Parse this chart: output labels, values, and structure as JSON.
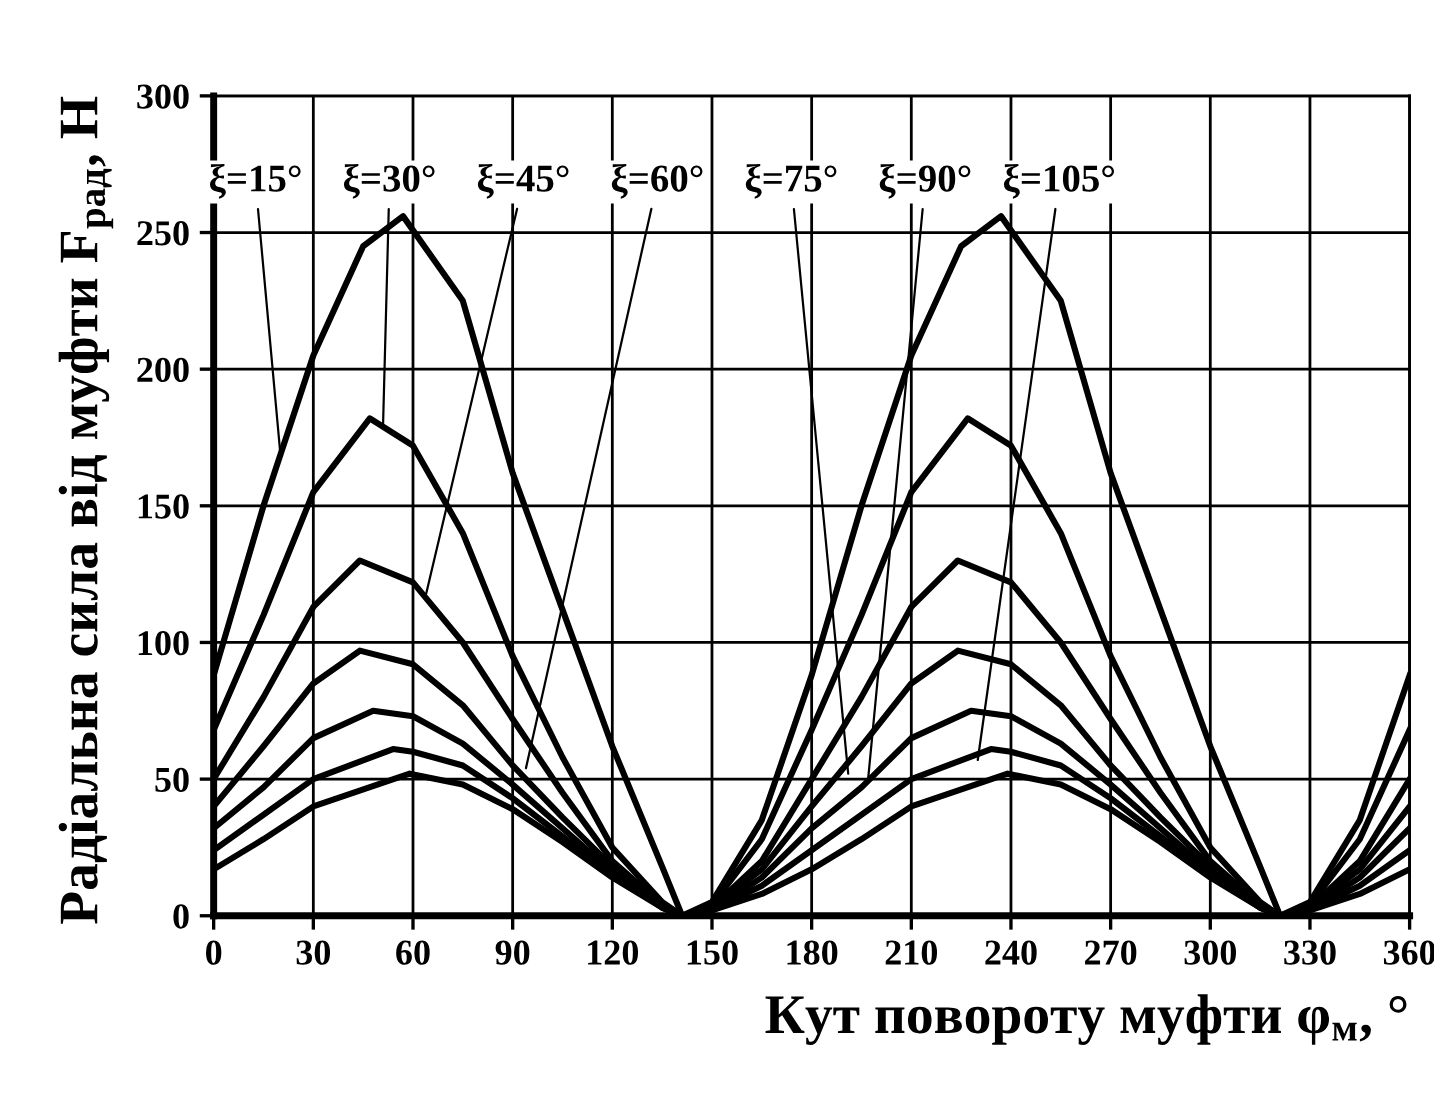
{
  "chart_data": {
    "type": "line",
    "xlabel": "Кут повороту муфти φ$_{м}$, °",
    "ylabel": "Радіальна сила від муфти F$_{рад}$, Н",
    "xlim": [
      0,
      360
    ],
    "ylim": [
      0,
      300
    ],
    "xticks": [
      0,
      30,
      60,
      90,
      120,
      150,
      180,
      210,
      240,
      270,
      300,
      330,
      360
    ],
    "yticks": [
      0,
      50,
      100,
      150,
      200,
      250,
      300
    ],
    "grid": true,
    "marker": "none",
    "line_style": "solid",
    "series": [
      {
        "color": "#000000",
        "x": [
          0,
          15,
          30,
          45,
          57,
          75,
          90,
          105,
          120,
          135,
          141,
          150,
          165,
          180,
          195,
          210,
          225,
          237,
          255,
          270,
          285,
          300,
          315,
          321,
          330,
          345,
          360
        ],
        "values": [
          88,
          150,
          205,
          245,
          256,
          225,
          162,
          112,
          62,
          18,
          0,
          5,
          35,
          88,
          150,
          205,
          245,
          256,
          225,
          162,
          112,
          62,
          18,
          0,
          5,
          35,
          88
        ]
      },
      {
        "color": "#000000",
        "x": [
          0,
          15,
          30,
          47,
          60,
          75,
          90,
          105,
          120,
          135,
          141,
          150,
          165,
          180,
          195,
          210,
          227,
          240,
          255,
          270,
          285,
          300,
          315,
          321,
          330,
          345,
          360
        ],
        "values": [
          68,
          110,
          155,
          182,
          172,
          140,
          95,
          58,
          25,
          5,
          0,
          4,
          28,
          68,
          110,
          155,
          182,
          172,
          140,
          95,
          58,
          25,
          5,
          0,
          4,
          28,
          68
        ]
      },
      {
        "color": "#000000",
        "x": [
          0,
          15,
          30,
          44,
          60,
          75,
          90,
          105,
          120,
          135,
          141,
          150,
          165,
          180,
          195,
          210,
          224,
          240,
          255,
          270,
          285,
          300,
          315,
          321,
          330,
          345,
          360
        ],
        "values": [
          50,
          80,
          113,
          130,
          122,
          100,
          72,
          45,
          20,
          4,
          0,
          3,
          20,
          50,
          80,
          113,
          130,
          122,
          100,
          72,
          45,
          20,
          4,
          0,
          3,
          20,
          50
        ]
      },
      {
        "color": "#000000",
        "x": [
          0,
          15,
          30,
          44,
          60,
          75,
          90,
          105,
          120,
          135,
          141,
          150,
          165,
          180,
          195,
          210,
          224,
          240,
          255,
          270,
          285,
          300,
          315,
          321,
          330,
          345,
          360
        ],
        "values": [
          40,
          62,
          85,
          97,
          92,
          77,
          55,
          36,
          18,
          4,
          0,
          3,
          17,
          40,
          62,
          85,
          97,
          92,
          77,
          55,
          36,
          18,
          4,
          0,
          3,
          17,
          40
        ]
      },
      {
        "color": "#000000",
        "x": [
          0,
          15,
          30,
          48,
          60,
          75,
          90,
          105,
          120,
          135,
          141,
          150,
          165,
          180,
          195,
          210,
          228,
          240,
          255,
          270,
          285,
          300,
          315,
          321,
          330,
          345,
          360
        ],
        "values": [
          32,
          47,
          65,
          75,
          73,
          63,
          48,
          32,
          16,
          3,
          0,
          2,
          14,
          32,
          47,
          65,
          75,
          73,
          63,
          48,
          32,
          16,
          3,
          0,
          2,
          14,
          32
        ]
      },
      {
        "color": "#000000",
        "x": [
          0,
          15,
          30,
          54,
          60,
          75,
          90,
          105,
          120,
          135,
          141,
          150,
          165,
          180,
          195,
          210,
          234,
          240,
          255,
          270,
          285,
          300,
          315,
          321,
          330,
          345,
          360
        ],
        "values": [
          24,
          37,
          50,
          61,
          60,
          55,
          43,
          29,
          15,
          3,
          0,
          2,
          11,
          24,
          37,
          50,
          61,
          60,
          55,
          43,
          29,
          15,
          3,
          0,
          2,
          11,
          24
        ]
      },
      {
        "color": "#000000",
        "x": [
          0,
          15,
          30,
          59,
          75,
          90,
          105,
          120,
          135,
          141,
          150,
          165,
          180,
          195,
          210,
          239,
          255,
          270,
          285,
          300,
          315,
          321,
          330,
          345,
          360
        ],
        "values": [
          17,
          28,
          40,
          52,
          48,
          39,
          27,
          14,
          3,
          0,
          2,
          8,
          17,
          28,
          40,
          52,
          48,
          39,
          27,
          14,
          3,
          0,
          2,
          8,
          17
        ]
      }
    ],
    "annotations": [
      {
        "text": "ξ=15°",
        "x": 20,
        "y": 170
      },
      {
        "text": "ξ=30°",
        "x": 51,
        "y": 180
      },
      {
        "text": "ξ=45°",
        "x": 64,
        "y": 118
      },
      {
        "text": "ξ=60°",
        "x": 94,
        "y": 54
      },
      {
        "text": "ξ=75°",
        "x": 191,
        "y": 52
      },
      {
        "text": "ξ=90°",
        "x": 197,
        "y": 50
      },
      {
        "text": "ξ=105°",
        "x": 230,
        "y": 57
      }
    ]
  }
}
